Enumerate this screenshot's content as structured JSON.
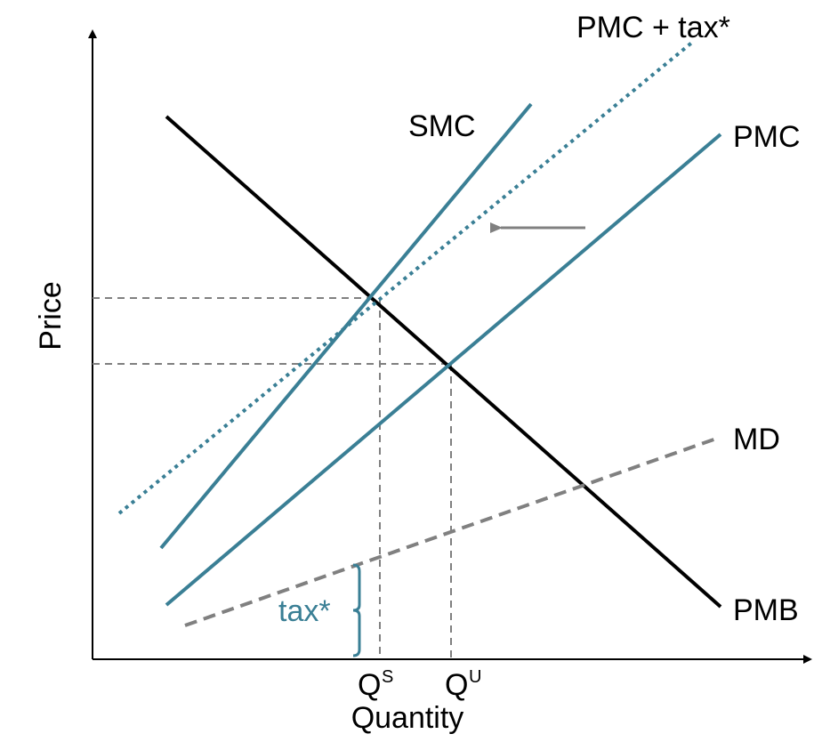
{
  "axes": {
    "y_label": "Price",
    "x_label": "Quantity"
  },
  "curves": {
    "pmc_tax": {
      "label": "PMC + tax*",
      "color": "#3a7f95"
    },
    "smc": {
      "label": "SMC",
      "color": "#3a7f95"
    },
    "pmc": {
      "label": "PMC",
      "color": "#3a7f95"
    },
    "md": {
      "label": "MD",
      "color": "#808080"
    },
    "pmb": {
      "label": "PMB",
      "color": "#000000"
    }
  },
  "markers": {
    "qs": {
      "main": "Q",
      "sup": "S"
    },
    "qu": {
      "main": "Q",
      "sup": "U"
    }
  },
  "tax_brace": {
    "label": "tax*",
    "color": "#3a7f95"
  },
  "colors": {
    "teal": "#3a7f95",
    "gray": "#808080",
    "black": "#000000"
  }
}
